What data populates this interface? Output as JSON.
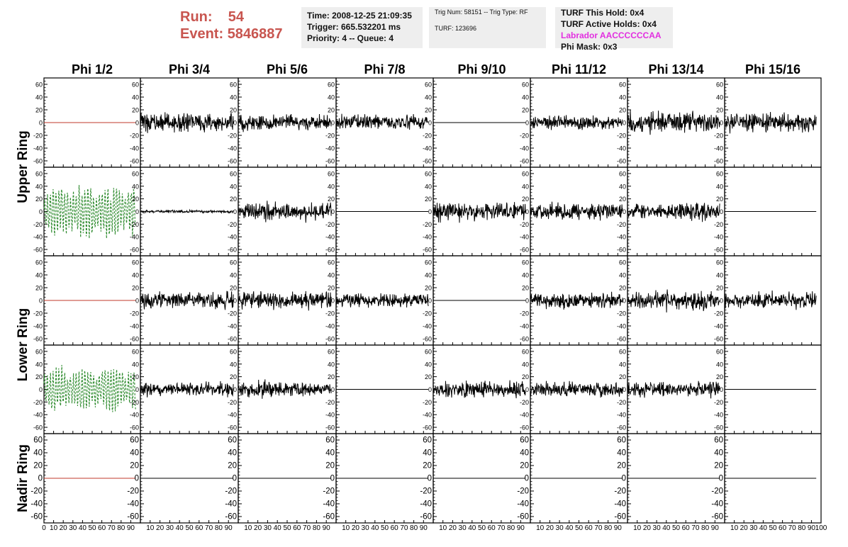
{
  "header": {
    "run_label": "Run:",
    "run_value": "54",
    "event_label": "Event:",
    "event_value": "5846887",
    "time_line": "Time: 2008-12-25 21:09:35",
    "trigger_line": "Trigger: 665.532201 ms",
    "priority_line": "Priority: 4 -- Queue: 4",
    "trig_num_line": "Trig Num: 58151 -- Trig Type: RF",
    "turf_line": "TURF: 123696",
    "turf_hold_line": "TURF This Hold: 0x4",
    "turf_active_line": "TURF Active Holds: 0x4",
    "labrador_line": "Labrador AACCCCCCAA",
    "phi_mask_line": "Phi Mask: 0x3",
    "colors": {
      "run": "#c8554f",
      "labrador": "#e22fe0",
      "box_bg": "#eeeeee"
    }
  },
  "chart_data": {
    "type": "line",
    "columns": [
      "Phi 1/2",
      "Phi 3/4",
      "Phi 5/6",
      "Phi 7/8",
      "Phi 9/10",
      "Phi 11/12",
      "Phi 13/14",
      "Phi 15/16"
    ],
    "ring_labels": [
      "Upper Ring",
      "Lower Ring",
      "Nadir Ring"
    ],
    "rows_per_ring": [
      2,
      2,
      1
    ],
    "xlim": [
      0,
      100
    ],
    "ylim": [
      -70,
      70
    ],
    "ytick_values": [
      -60,
      -40,
      -20,
      0,
      20,
      40,
      60
    ],
    "xtick_values": [
      0,
      10,
      20,
      30,
      40,
      50,
      60,
      70,
      80,
      90,
      100
    ],
    "trace_x_range": [
      0,
      95
    ],
    "colors": {
      "trace": "#000000",
      "masked": "#c0392b",
      "triggered": "#2e8b2e"
    },
    "traces": [
      [
        {
          "style": "masked",
          "amplitude": 0
        },
        {
          "style": "normal",
          "amplitude": 20
        },
        {
          "style": "normal",
          "amplitude": 18
        },
        {
          "style": "normal",
          "amplitude": 16
        },
        {
          "style": "flat",
          "amplitude": 0
        },
        {
          "style": "normal",
          "amplitude": 16
        },
        {
          "style": "normal",
          "amplitude": 24
        },
        {
          "style": "normal",
          "amplitude": 20
        }
      ],
      [
        {
          "style": "triggered",
          "amplitude": 38
        },
        {
          "style": "normal",
          "amplitude": 3
        },
        {
          "style": "normal",
          "amplitude": 20
        },
        {
          "style": "flat",
          "amplitude": 0
        },
        {
          "style": "normal",
          "amplitude": 20
        },
        {
          "style": "normal",
          "amplitude": 18
        },
        {
          "style": "normal",
          "amplitude": 18
        },
        {
          "style": "flat",
          "amplitude": 0
        }
      ],
      [
        {
          "style": "masked",
          "amplitude": 0
        },
        {
          "style": "normal",
          "amplitude": 17
        },
        {
          "style": "normal",
          "amplitude": 18
        },
        {
          "style": "normal",
          "amplitude": 15
        },
        {
          "style": "flat",
          "amplitude": 0
        },
        {
          "style": "normal",
          "amplitude": 17
        },
        {
          "style": "normal",
          "amplitude": 20
        },
        {
          "style": "normal",
          "amplitude": 17
        }
      ],
      [
        {
          "style": "triggered",
          "amplitude": 32
        },
        {
          "style": "normal",
          "amplitude": 15
        },
        {
          "style": "normal",
          "amplitude": 17
        },
        {
          "style": "flat",
          "amplitude": 0
        },
        {
          "style": "normal",
          "amplitude": 18
        },
        {
          "style": "normal",
          "amplitude": 16
        },
        {
          "style": "normal",
          "amplitude": 16
        },
        {
          "style": "flat",
          "amplitude": 0
        }
      ],
      [
        {
          "style": "masked",
          "amplitude": 0
        },
        {
          "style": "flat",
          "amplitude": 0
        },
        {
          "style": "flat",
          "amplitude": 0
        },
        {
          "style": "flat",
          "amplitude": 0
        },
        {
          "style": "flat",
          "amplitude": 0
        },
        {
          "style": "flat",
          "amplitude": 0
        },
        {
          "style": "flat",
          "amplitude": 0
        },
        {
          "style": "flat",
          "amplitude": 0
        }
      ]
    ]
  }
}
